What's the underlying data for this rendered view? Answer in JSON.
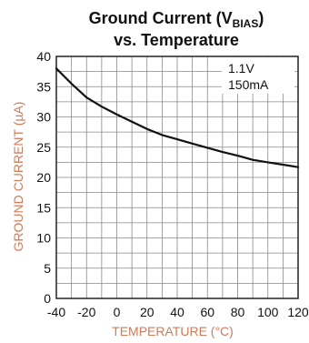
{
  "chart_data": {
    "type": "line",
    "title": {
      "main": "Ground Current (V",
      "subscript": "BIAS",
      "close": ")",
      "line2": "vs. Temperature"
    },
    "xlabel": "TEMPERATURE (°C)",
    "ylabel": "GROUND CURRENT (µA)",
    "xlim": [
      -40,
      120
    ],
    "ylim": [
      0,
      40
    ],
    "x_ticks": [
      -40,
      -20,
      0,
      20,
      40,
      60,
      80,
      100,
      120
    ],
    "y_ticks": [
      0,
      5,
      10,
      15,
      20,
      25,
      30,
      35,
      40
    ],
    "x_minor_step": 10,
    "y_minor_step": 2.5,
    "grid": true,
    "annotations": [
      "1.1V",
      "150mA"
    ],
    "colors": {
      "curve": "#111111",
      "axis_label": "#d07a5a",
      "grid": "#888888",
      "text": "#111111"
    },
    "series": [
      {
        "x": [
          -40,
          -30,
          -20,
          -10,
          0,
          10,
          20,
          30,
          40,
          50,
          60,
          70,
          80,
          90,
          100,
          110,
          120
        ],
        "y": [
          38.0,
          35.5,
          33.2,
          31.7,
          30.4,
          29.2,
          28.0,
          27.0,
          26.3,
          25.6,
          24.9,
          24.2,
          23.6,
          22.9,
          22.5,
          22.1,
          21.7
        ]
      }
    ]
  }
}
